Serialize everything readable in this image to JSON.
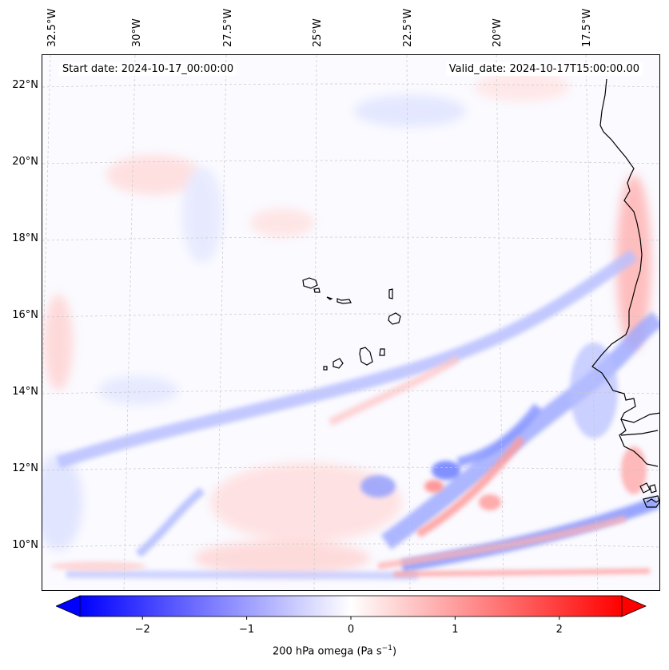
{
  "figure": {
    "start_label": "Start date: 2024-10-17_00:00:00",
    "valid_label": "Valid_date: 2024-10-17T15:00:00.00",
    "colorbar_label_text": "200 hPa omega (Pa s",
    "colorbar_label_exp": "−1",
    "colorbar_label_close": ")"
  },
  "axes": {
    "lat_ticks": [
      "22°N",
      "20°N",
      "18°N",
      "16°N",
      "14°N",
      "12°N",
      "10°N"
    ],
    "lon_ticks": [
      "32.5°W",
      "30°W",
      "27.5°W",
      "25°W",
      "22.5°W",
      "20°W",
      "17.5°W"
    ]
  },
  "colorbar": {
    "min": -2.6,
    "max": 2.6,
    "ticks": [
      -2,
      -1,
      0,
      1,
      2
    ],
    "tick_labels": [
      "−2",
      "−1",
      "0",
      "1",
      "2"
    ],
    "colormap": "bwr",
    "extend": "both",
    "low_color": "#0000ff",
    "mid_color": "#ffffff",
    "high_color": "#ff0000"
  },
  "colors": {
    "coast": "#000000",
    "grid": "#c8c8c8"
  }
}
